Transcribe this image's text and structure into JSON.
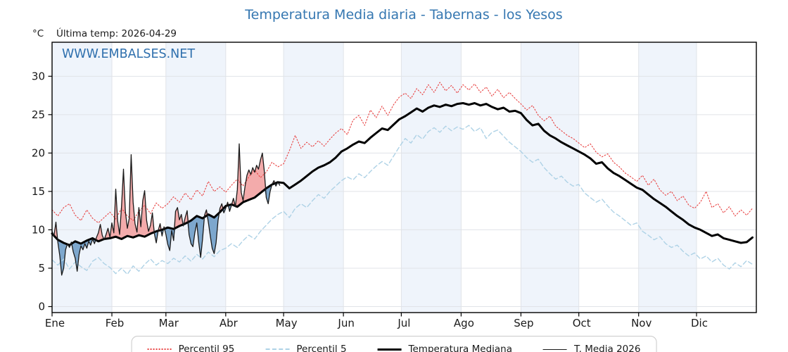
{
  "figure": {
    "title": "Temperatura Media diaria - Tabernas - los Yesos",
    "title_color": "#3577b1",
    "ylabel": "°C",
    "last_temp_label": "Última temp: 2026-04-29",
    "watermark": "WWW.EMBALSES.NET",
    "watermark_color": "#2e6fad"
  },
  "chart_data": {
    "type": "line",
    "title": "Temperatura Media diaria - Tabernas - los Yesos",
    "xlabel": "",
    "ylabel": "°C",
    "x_months": [
      "Ene",
      "Feb",
      "Mar",
      "Abr",
      "May",
      "Jun",
      "Jul",
      "Ago",
      "Sep",
      "Oct",
      "Nov",
      "Dic"
    ],
    "x_month_start_days": [
      0,
      31,
      59,
      90,
      120,
      151,
      181,
      212,
      243,
      273,
      304,
      334
    ],
    "days_in_year": 365,
    "yticks": [
      0,
      5,
      10,
      15,
      20,
      25,
      30
    ],
    "ylim": [
      -0.78,
      34.43
    ],
    "grid": true,
    "grid_color": "#e0e3e8",
    "month_band_color": "#eff4fb",
    "legend_position": "bottom-center",
    "annotation": "Última temp: 2026-04-29",
    "fill_between": {
      "base": "Temperatura Mediana",
      "compare": "T. Media 2026",
      "above_color": "#f3abab",
      "below_color": "#7da7cd"
    },
    "series": [
      {
        "name": "Percentil 95",
        "style": "dotted",
        "color": "#e84343",
        "width": 1.1,
        "start_day": 0,
        "step_days": 3,
        "values": [
          12.6,
          11.8,
          12.9,
          13.4,
          11.9,
          11.2,
          12.6,
          11.5,
          10.9,
          11.6,
          12.3,
          11.4,
          12.8,
          11.8,
          11.2,
          12.4,
          13.2,
          12.1,
          13.5,
          12.8,
          13.4,
          14.3,
          13.6,
          14.8,
          13.9,
          15.2,
          14.4,
          16.3,
          15.0,
          15.6,
          14.9,
          15.8,
          16.6,
          15.7,
          16.9,
          17.8,
          16.8,
          17.5,
          18.8,
          18.2,
          18.6,
          20.3,
          22.3,
          20.6,
          21.4,
          20.8,
          21.6,
          20.9,
          21.8,
          22.6,
          23.2,
          22.4,
          24.3,
          24.9,
          23.6,
          25.6,
          24.6,
          26.1,
          24.9,
          26.3,
          27.3,
          27.8,
          27.1,
          28.4,
          27.6,
          28.9,
          27.9,
          29.2,
          28.1,
          28.8,
          27.8,
          28.9,
          28.2,
          29.0,
          27.9,
          28.6,
          27.4,
          28.3,
          27.2,
          27.9,
          27.1,
          26.4,
          25.6,
          26.2,
          24.9,
          24.2,
          24.8,
          23.5,
          22.9,
          22.3,
          21.9,
          21.3,
          20.7,
          21.2,
          20.1,
          19.5,
          19.9,
          18.8,
          18.2,
          17.4,
          16.9,
          16.3,
          17.1,
          15.8,
          16.6,
          15.2,
          14.5,
          15.0,
          13.8,
          14.4,
          13.2,
          12.8,
          13.6,
          15.0,
          12.9,
          13.4,
          12.2,
          13.0,
          11.8,
          12.6,
          11.9,
          12.8
        ]
      },
      {
        "name": "Percentil 5",
        "style": "dashed",
        "color": "#aed2e6",
        "width": 1.4,
        "start_day": 0,
        "step_days": 3,
        "values": [
          6.1,
          5.4,
          6.2,
          4.9,
          5.8,
          5.2,
          4.7,
          5.9,
          6.4,
          5.6,
          5.1,
          4.3,
          5.0,
          4.2,
          5.3,
          4.6,
          5.5,
          6.2,
          5.4,
          6.0,
          5.6,
          6.3,
          5.8,
          6.6,
          5.9,
          6.8,
          6.2,
          7.1,
          6.5,
          7.3,
          7.6,
          8.2,
          7.7,
          8.6,
          9.3,
          8.8,
          9.8,
          10.6,
          11.4,
          12.0,
          12.4,
          11.6,
          12.8,
          13.4,
          12.9,
          13.8,
          14.6,
          14.1,
          15.0,
          15.7,
          16.4,
          16.9,
          16.5,
          17.3,
          16.8,
          17.6,
          18.3,
          18.9,
          18.4,
          19.6,
          20.8,
          21.9,
          21.3,
          22.4,
          21.8,
          22.8,
          23.3,
          22.7,
          23.5,
          22.9,
          23.4,
          23.1,
          23.6,
          22.8,
          23.3,
          21.9,
          22.7,
          23.0,
          22.2,
          21.4,
          20.8,
          20.2,
          19.4,
          18.8,
          19.2,
          18.1,
          17.3,
          16.6,
          17.0,
          16.2,
          15.7,
          15.9,
          14.8,
          14.2,
          13.6,
          14.0,
          13.1,
          12.3,
          11.8,
          11.2,
          10.6,
          10.9,
          9.8,
          9.3,
          8.7,
          9.1,
          8.2,
          7.7,
          8.0,
          7.2,
          6.6,
          7.0,
          6.2,
          6.6,
          5.8,
          6.3,
          5.4,
          4.9,
          5.7,
          5.2,
          6.0,
          5.5
        ]
      },
      {
        "name": "Temperatura Mediana",
        "style": "solid",
        "color": "#000000",
        "width": 3,
        "start_day": 0,
        "step_days": 3,
        "values": [
          9.5,
          8.7,
          8.3,
          8.0,
          8.5,
          8.2,
          8.6,
          8.9,
          8.5,
          8.8,
          8.9,
          9.1,
          8.8,
          9.2,
          9.0,
          9.3,
          9.1,
          9.5,
          9.8,
          10.0,
          10.3,
          10.1,
          10.5,
          10.8,
          11.2,
          11.8,
          11.5,
          12.0,
          11.6,
          12.3,
          13.1,
          13.3,
          13.0,
          13.6,
          13.9,
          14.2,
          14.8,
          15.4,
          15.9,
          16.2,
          16.1,
          15.4,
          15.9,
          16.4,
          17.0,
          17.6,
          18.1,
          18.4,
          18.8,
          19.4,
          20.2,
          20.6,
          21.1,
          21.5,
          21.3,
          22.0,
          22.6,
          23.2,
          23.0,
          23.7,
          24.4,
          24.8,
          25.3,
          25.8,
          25.4,
          25.9,
          26.2,
          26.0,
          26.3,
          26.1,
          26.4,
          26.5,
          26.3,
          26.5,
          26.2,
          26.4,
          26.0,
          25.7,
          25.9,
          25.4,
          25.5,
          25.2,
          24.3,
          23.6,
          23.8,
          22.9,
          22.3,
          21.9,
          21.4,
          21.0,
          20.6,
          20.2,
          19.8,
          19.3,
          18.6,
          18.8,
          18.0,
          17.4,
          17.0,
          16.5,
          16.0,
          15.5,
          15.2,
          14.6,
          14.0,
          13.5,
          13.0,
          12.4,
          11.8,
          11.3,
          10.7,
          10.3,
          10.0,
          9.6,
          9.2,
          9.4,
          8.9,
          8.7,
          8.5,
          8.3,
          8.4,
          9.0
        ]
      },
      {
        "name": "T. Media 2026",
        "style": "solid",
        "color": "#1a1a1a",
        "width": 1.3,
        "start_day": 0,
        "step_days": 1,
        "values": [
          9.8,
          9.2,
          11.0,
          8.4,
          6.6,
          4.1,
          5.0,
          7.4,
          8.2,
          7.7,
          8.4,
          7.1,
          6.3,
          4.6,
          6.8,
          7.9,
          7.4,
          8.2,
          7.6,
          8.5,
          8.0,
          8.8,
          8.2,
          9.0,
          9.6,
          10.7,
          9.3,
          8.7,
          9.4,
          10.2,
          9.0,
          10.9,
          9.6,
          15.3,
          11.2,
          9.4,
          13.0,
          17.9,
          12.4,
          10.2,
          11.5,
          19.8,
          13.6,
          10.8,
          9.7,
          12.9,
          10.4,
          13.8,
          15.1,
          11.2,
          9.8,
          10.6,
          12.2,
          9.5,
          8.3,
          9.9,
          10.8,
          9.2,
          10.4,
          9.4,
          8.1,
          7.3,
          9.9,
          8.6,
          12.4,
          12.9,
          11.3,
          12.0,
          10.5,
          11.6,
          12.5,
          9.4,
          8.2,
          7.8,
          9.6,
          10.9,
          8.4,
          6.4,
          8.8,
          11.9,
          12.6,
          11.0,
          9.2,
          7.6,
          6.9,
          8.3,
          11.2,
          12.8,
          13.4,
          12.2,
          12.8,
          13.6,
          12.4,
          13.2,
          14.1,
          13.0,
          15.2,
          21.2,
          14.9,
          13.8,
          15.6,
          17.1,
          17.8,
          17.2,
          18.1,
          17.5,
          18.4,
          17.9,
          19.1,
          20.0,
          17.6,
          14.2,
          13.4,
          15.0,
          15.9,
          16.4,
          15.7,
          16.2,
          15.8
        ]
      }
    ]
  }
}
